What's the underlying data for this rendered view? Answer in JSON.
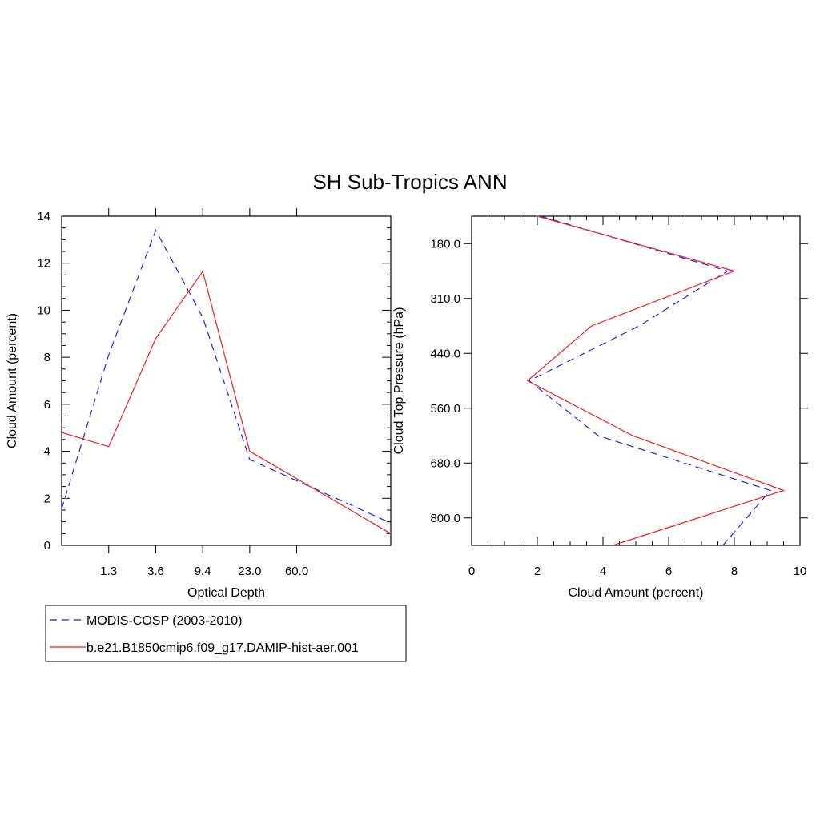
{
  "title": "SH Sub-Tropics ANN",
  "colors": {
    "obs": "#2222dd",
    "model": "#ee2222"
  },
  "legend": [
    {
      "name": "MODIS-COSP (2003-2010)",
      "style": "dashed",
      "color": "#2222dd"
    },
    {
      "name": "b.e21.B1850cmip6.f09_g17.DAMIP-hist-aer.001",
      "style": "solid",
      "color": "#ee2222"
    }
  ],
  "chart_data": [
    {
      "type": "line",
      "xlabel": "Optical Depth",
      "ylabel": "Cloud Amount (percent)",
      "x_tick_labels": [
        "1.3",
        "3.6",
        "9.4",
        "23.0",
        "60.0"
      ],
      "y_ticks": [
        0,
        2,
        4,
        6,
        8,
        10,
        12,
        14
      ],
      "ylim": [
        0,
        14
      ],
      "x_bins": 7,
      "series": [
        {
          "name": "MODIS-COSP (2003-2010)",
          "values": [
            1.55,
            8.1,
            13.4,
            9.7,
            3.65,
            0.95
          ]
        },
        {
          "name": "b.e21.B1850cmip6.f09_g17.DAMIP-hist-aer.001",
          "values": [
            4.8,
            4.2,
            8.8,
            11.65,
            4.0,
            0.5
          ]
        }
      ]
    },
    {
      "type": "line",
      "xlabel": "Cloud Amount (percent)",
      "ylabel": "Cloud Top Pressure (hPa)",
      "x_ticks": [
        0,
        2,
        4,
        6,
        8,
        10
      ],
      "xlim": [
        0,
        10
      ],
      "y_tick_labels": [
        "180.0",
        "310.0",
        "440.0",
        "560.0",
        "680.0",
        "800.0"
      ],
      "y_bins": 6,
      "series": [
        {
          "name": "MODIS-COSP (2003-2010)",
          "values": [
            2.1,
            7.8,
            5.1,
            1.75,
            3.85,
            9.1,
            7.65
          ]
        },
        {
          "name": "b.e21.B1850cmip6.f09_g17.DAMIP-hist-aer.001",
          "values": [
            2.0,
            8.0,
            3.65,
            1.7,
            4.9,
            9.5,
            4.3
          ]
        }
      ]
    }
  ]
}
